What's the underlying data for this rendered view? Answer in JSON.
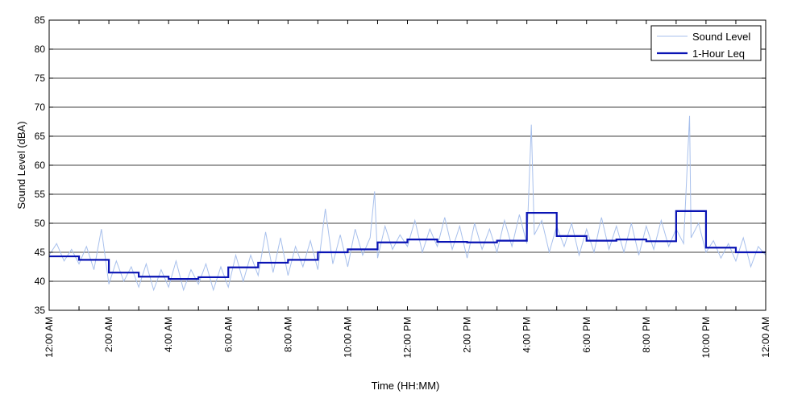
{
  "chart_data": {
    "type": "line",
    "title": "",
    "xlabel": "Time (HH:MM)",
    "ylabel": "Sound Level (dBA)",
    "ylim": [
      35,
      85
    ],
    "yticks": [
      35,
      40,
      45,
      50,
      55,
      60,
      65,
      70,
      75,
      80,
      85
    ],
    "xlim_hours": [
      0,
      24
    ],
    "xtick_labels": [
      "12:00 AM",
      "2:00 AM",
      "4:00 AM",
      "6:00 AM",
      "8:00 AM",
      "10:00 AM",
      "12:00 PM",
      "2:00 PM",
      "4:00 PM",
      "6:00 PM",
      "8:00 PM",
      "10:00 PM",
      "12:00 AM"
    ],
    "xtick_hours": [
      0,
      2,
      4,
      6,
      8,
      10,
      12,
      14,
      16,
      18,
      20,
      22,
      24
    ],
    "grid": "horizontal",
    "legend_position": "top-right",
    "colors": {
      "sound_level": "#a8c0ec",
      "leq": "#0a14b4",
      "grid": "#000000"
    },
    "series": [
      {
        "name": "Sound Level",
        "x_hours": [
          0.0,
          0.25,
          0.5,
          0.75,
          1.0,
          1.25,
          1.5,
          1.75,
          2.0,
          2.25,
          2.5,
          2.75,
          3.0,
          3.25,
          3.5,
          3.75,
          4.0,
          4.25,
          4.5,
          4.75,
          5.0,
          5.25,
          5.5,
          5.75,
          6.0,
          6.25,
          6.5,
          6.75,
          7.0,
          7.25,
          7.5,
          7.75,
          8.0,
          8.25,
          8.5,
          8.75,
          9.0,
          9.25,
          9.5,
          9.75,
          10.0,
          10.25,
          10.5,
          10.75,
          10.9,
          11.0,
          11.25,
          11.5,
          11.75,
          12.0,
          12.25,
          12.5,
          12.75,
          13.0,
          13.25,
          13.5,
          13.75,
          14.0,
          14.25,
          14.5,
          14.75,
          15.0,
          15.25,
          15.5,
          15.75,
          16.0,
          16.15,
          16.25,
          16.5,
          16.75,
          17.0,
          17.25,
          17.5,
          17.75,
          18.0,
          18.25,
          18.5,
          18.75,
          19.0,
          19.25,
          19.5,
          19.75,
          20.0,
          20.25,
          20.5,
          20.75,
          21.0,
          21.25,
          21.45,
          21.5,
          21.75,
          22.0,
          22.25,
          22.5,
          22.75,
          23.0,
          23.25,
          23.5,
          23.75,
          24.0
        ],
        "values": [
          44.5,
          46.5,
          43.5,
          45.5,
          43.0,
          46.0,
          42.0,
          49.0,
          39.5,
          43.5,
          40.0,
          42.5,
          39.0,
          43.0,
          38.5,
          42.0,
          39.0,
          43.5,
          38.5,
          42.0,
          39.5,
          43.0,
          38.5,
          42.5,
          39.0,
          44.5,
          40.0,
          44.5,
          41.0,
          48.5,
          41.5,
          47.5,
          41.0,
          46.0,
          42.5,
          47.0,
          42.0,
          52.5,
          43.0,
          48.0,
          42.5,
          49.0,
          44.5,
          47.5,
          55.5,
          44.0,
          49.5,
          45.5,
          48.0,
          46.0,
          50.5,
          45.0,
          49.0,
          46.0,
          51.0,
          45.5,
          49.5,
          44.0,
          50.0,
          45.5,
          49.0,
          45.0,
          50.5,
          46.0,
          51.5,
          46.5,
          67.0,
          48.0,
          50.5,
          45.0,
          49.5,
          46.0,
          50.0,
          44.5,
          49.0,
          45.0,
          51.0,
          45.5,
          49.5,
          45.0,
          50.0,
          44.5,
          49.5,
          45.5,
          50.5,
          46.0,
          49.0,
          46.5,
          68.5,
          47.5,
          50.0,
          45.0,
          47.0,
          44.0,
          46.5,
          43.5,
          47.5,
          42.5,
          46.0,
          44.5
        ]
      },
      {
        "name": "1-Hour Leq",
        "step_start_hours": [
          0,
          1,
          2,
          3,
          4,
          5,
          6,
          7,
          8,
          9,
          10,
          11,
          12,
          13,
          14,
          15,
          16,
          17,
          18,
          19,
          20,
          21,
          22,
          23
        ],
        "values": [
          44.3,
          43.7,
          41.5,
          40.8,
          40.4,
          40.7,
          42.4,
          43.2,
          43.7,
          45.0,
          45.5,
          46.7,
          47.2,
          46.8,
          46.7,
          47.0,
          51.8,
          47.8,
          47.0,
          47.2,
          46.9,
          52.1,
          45.8,
          45.0
        ]
      }
    ]
  }
}
